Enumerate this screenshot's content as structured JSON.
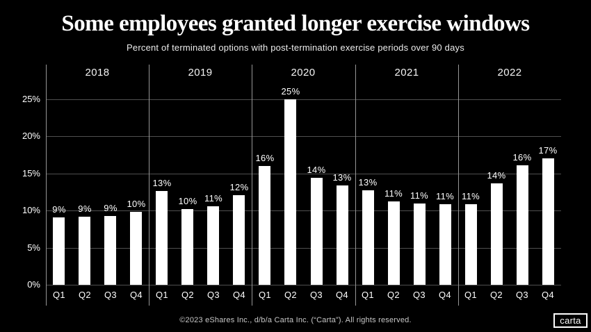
{
  "colors": {
    "background": "#000000",
    "bar": "#ffffff",
    "gridline": "#505050",
    "divider": "#979797",
    "label": "#ffffff"
  },
  "footer": {
    "copyright": "©2023 eShares Inc., d/b/a Carta Inc. (“Carta”). All rights reserved.",
    "logo_text": "carta"
  },
  "chart_data": {
    "type": "bar",
    "title": "Some employees granted longer exercise windows",
    "subtitle": "Percent of terminated options with post-termination exercise periods over 90 days",
    "xlabel": "",
    "ylabel": "",
    "ylim": [
      0,
      27
    ],
    "grid": "horizontal",
    "legend": "none",
    "y_ticks": [
      {
        "value": 0,
        "label": "0%"
      },
      {
        "value": 5,
        "label": "5%"
      },
      {
        "value": 10,
        "label": "10%"
      },
      {
        "value": 15,
        "label": "15%"
      },
      {
        "value": 20,
        "label": "20%"
      },
      {
        "value": 25,
        "label": "25%"
      }
    ],
    "groups": [
      {
        "year": "2018",
        "quarters": [
          "Q1",
          "Q2",
          "Q3",
          "Q4"
        ],
        "values": [
          9.1,
          9.2,
          9.3,
          9.8
        ],
        "labels": [
          "9%",
          "9%",
          "9%",
          "10%"
        ]
      },
      {
        "year": "2019",
        "quarters": [
          "Q1",
          "Q2",
          "Q3",
          "Q4"
        ],
        "values": [
          12.6,
          10.2,
          10.6,
          12.1
        ],
        "labels": [
          "13%",
          "10%",
          "11%",
          "12%"
        ]
      },
      {
        "year": "2020",
        "quarters": [
          "Q1",
          "Q2",
          "Q3",
          "Q4"
        ],
        "values": [
          16.0,
          25.0,
          14.4,
          13.4
        ],
        "labels": [
          "16%",
          "25%",
          "14%",
          "13%"
        ]
      },
      {
        "year": "2021",
        "quarters": [
          "Q1",
          "Q2",
          "Q3",
          "Q4"
        ],
        "values": [
          12.7,
          11.2,
          11.0,
          10.9
        ],
        "labels": [
          "13%",
          "11%",
          "11%",
          "11%"
        ]
      },
      {
        "year": "2022",
        "quarters": [
          "Q1",
          "Q2",
          "Q3",
          "Q4"
        ],
        "values": [
          10.9,
          13.7,
          16.1,
          17.0
        ],
        "labels": [
          "11%",
          "14%",
          "16%",
          "17%"
        ]
      }
    ]
  }
}
